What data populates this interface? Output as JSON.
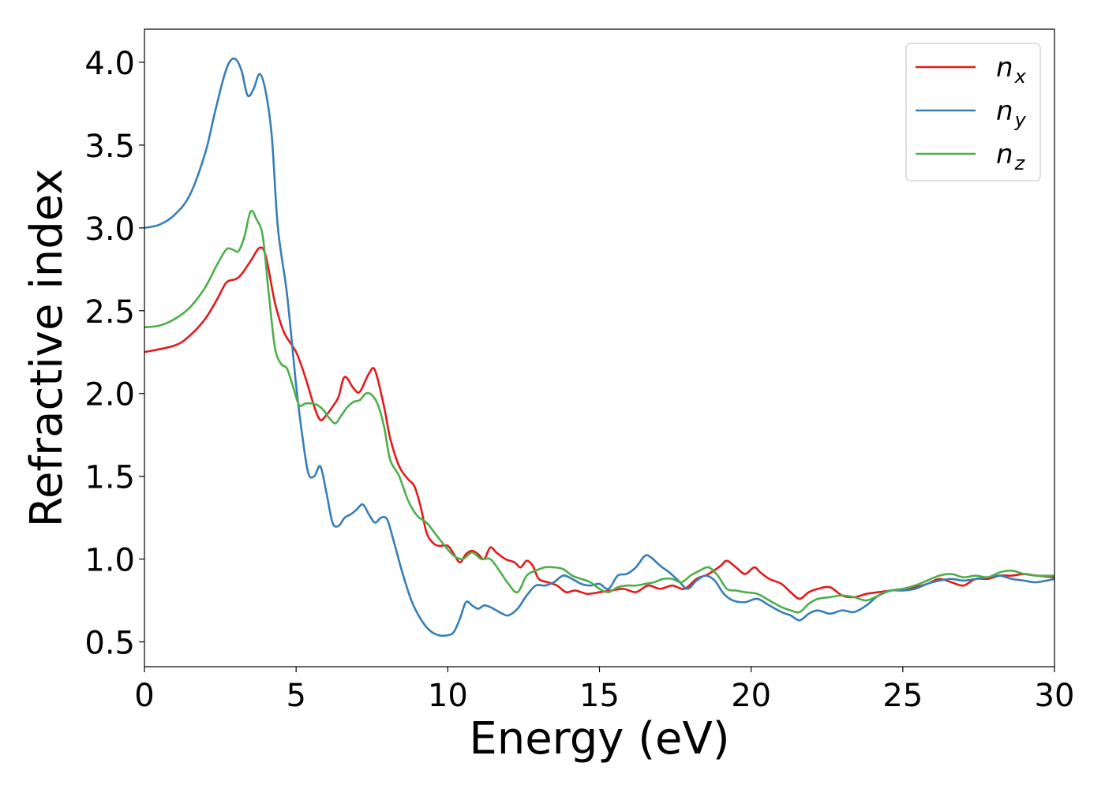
{
  "chart_data": {
    "type": "line",
    "xlabel": "Energy (eV)",
    "ylabel": "Refractive index",
    "xlim": [
      0,
      30
    ],
    "ylim": [
      0.35,
      4.2
    ],
    "xticks": [
      0,
      5,
      10,
      15,
      20,
      25,
      30
    ],
    "xtick_labels": [
      "0",
      "5",
      "10",
      "15",
      "20",
      "25",
      "30"
    ],
    "yticks": [
      0.5,
      1.0,
      1.5,
      2.0,
      2.5,
      3.0,
      3.5,
      4.0
    ],
    "ytick_labels": [
      "0.5",
      "1.0",
      "1.5",
      "2.0",
      "2.5",
      "3.0",
      "3.5",
      "4.0"
    ],
    "grid": false,
    "legend_position": "top-right",
    "series": [
      {
        "name": "n_x",
        "legend_base": "n",
        "legend_sub": "x",
        "color": "#e41a1c",
        "x": [
          0,
          1,
          1.5,
          2,
          2.4,
          2.7,
          3.0,
          3.2,
          3.5,
          3.8,
          4.0,
          4.3,
          4.6,
          5.0,
          5.3,
          5.6,
          5.8,
          6.0,
          6.2,
          6.4,
          6.6,
          6.9,
          7.1,
          7.4,
          7.6,
          7.9,
          8.1,
          8.4,
          8.7,
          8.9,
          9.1,
          9.3,
          9.5,
          9.7,
          10.0,
          10.2,
          10.4,
          10.6,
          10.8,
          11.0,
          11.2,
          11.4,
          11.6,
          11.9,
          12.2,
          12.4,
          12.6,
          12.8,
          13.0,
          13.3,
          13.6,
          13.9,
          14.2,
          14.6,
          15.0,
          15.4,
          15.8,
          16.2,
          16.6,
          17.0,
          17.4,
          17.8,
          18.2,
          18.6,
          19.0,
          19.2,
          19.5,
          19.8,
          20.1,
          20.3,
          20.6,
          21.0,
          21.3,
          21.6,
          21.9,
          22.2,
          22.6,
          23.0,
          23.4,
          23.8,
          24.2,
          24.6,
          25.0,
          25.4,
          25.8,
          26.2,
          26.6,
          27.0,
          27.4,
          27.8,
          28.2,
          28.6,
          29.0,
          29.4,
          30.0
        ],
        "values": [
          2.25,
          2.29,
          2.35,
          2.45,
          2.57,
          2.67,
          2.69,
          2.72,
          2.8,
          2.88,
          2.83,
          2.55,
          2.37,
          2.25,
          2.1,
          1.92,
          1.84,
          1.87,
          1.92,
          1.98,
          2.1,
          2.03,
          2.01,
          2.12,
          2.14,
          1.92,
          1.73,
          1.56,
          1.48,
          1.44,
          1.32,
          1.16,
          1.1,
          1.08,
          1.08,
          1.03,
          0.98,
          1.03,
          1.05,
          1.03,
          1.0,
          1.07,
          1.04,
          1.0,
          0.98,
          0.95,
          0.99,
          0.96,
          0.88,
          0.86,
          0.84,
          0.8,
          0.81,
          0.79,
          0.8,
          0.81,
          0.82,
          0.8,
          0.84,
          0.82,
          0.84,
          0.82,
          0.88,
          0.91,
          0.96,
          0.99,
          0.95,
          0.91,
          0.95,
          0.92,
          0.88,
          0.85,
          0.8,
          0.76,
          0.8,
          0.82,
          0.83,
          0.78,
          0.77,
          0.79,
          0.8,
          0.81,
          0.82,
          0.83,
          0.85,
          0.88,
          0.86,
          0.84,
          0.88,
          0.88,
          0.9,
          0.9,
          0.91,
          0.9,
          0.89
        ]
      },
      {
        "name": "n_y",
        "legend_base": "n",
        "legend_sub": "y",
        "color": "#377eb8",
        "x": [
          0,
          0.5,
          1,
          1.5,
          2,
          2.3,
          2.6,
          2.8,
          3.0,
          3.2,
          3.4,
          3.6,
          3.8,
          4.0,
          4.2,
          4.4,
          4.7,
          5.0,
          5.2,
          5.4,
          5.6,
          5.8,
          6.0,
          6.2,
          6.4,
          6.6,
          6.8,
          7.0,
          7.2,
          7.4,
          7.6,
          7.8,
          8.0,
          8.2,
          8.5,
          8.8,
          9.1,
          9.4,
          9.7,
          10.0,
          10.2,
          10.4,
          10.6,
          10.8,
          11.0,
          11.2,
          11.4,
          11.6,
          11.8,
          12.0,
          12.3,
          12.6,
          12.9,
          13.2,
          13.5,
          13.8,
          14.1,
          14.4,
          14.7,
          15.0,
          15.3,
          15.6,
          15.9,
          16.2,
          16.5,
          16.7,
          17.0,
          17.3,
          17.6,
          17.9,
          18.2,
          18.5,
          18.8,
          19.1,
          19.4,
          19.8,
          20.2,
          20.6,
          21.0,
          21.3,
          21.6,
          21.9,
          22.2,
          22.6,
          23.0,
          23.4,
          23.8,
          24.2,
          24.6,
          25.0,
          25.4,
          25.8,
          26.2,
          26.6,
          27.0,
          27.4,
          27.8,
          28.2,
          28.6,
          29.0,
          29.4,
          30.0
        ],
        "values": [
          3.0,
          3.02,
          3.08,
          3.2,
          3.45,
          3.68,
          3.9,
          4.0,
          4.02,
          3.95,
          3.8,
          3.84,
          3.93,
          3.82,
          3.55,
          3.0,
          2.6,
          2.05,
          1.75,
          1.52,
          1.5,
          1.56,
          1.4,
          1.22,
          1.2,
          1.25,
          1.27,
          1.3,
          1.33,
          1.27,
          1.22,
          1.25,
          1.24,
          1.12,
          0.92,
          0.75,
          0.64,
          0.57,
          0.54,
          0.54,
          0.56,
          0.64,
          0.74,
          0.72,
          0.7,
          0.72,
          0.71,
          0.69,
          0.67,
          0.66,
          0.7,
          0.78,
          0.84,
          0.84,
          0.86,
          0.9,
          0.88,
          0.85,
          0.84,
          0.85,
          0.82,
          0.9,
          0.91,
          0.95,
          1.02,
          1.01,
          0.96,
          0.92,
          0.87,
          0.82,
          0.87,
          0.9,
          0.87,
          0.79,
          0.75,
          0.74,
          0.76,
          0.72,
          0.68,
          0.66,
          0.63,
          0.67,
          0.69,
          0.67,
          0.69,
          0.68,
          0.72,
          0.78,
          0.81,
          0.81,
          0.82,
          0.85,
          0.87,
          0.88,
          0.87,
          0.88,
          0.89,
          0.9,
          0.88,
          0.87,
          0.86,
          0.88
        ]
      },
      {
        "name": "n_z",
        "legend_base": "n",
        "legend_sub": "z",
        "color": "#4daf4a",
        "x": [
          0,
          0.5,
          1,
          1.5,
          2,
          2.4,
          2.7,
          2.9,
          3.1,
          3.3,
          3.5,
          3.7,
          3.9,
          4.1,
          4.3,
          4.5,
          4.7,
          4.9,
          5.1,
          5.3,
          5.5,
          5.7,
          5.9,
          6.1,
          6.3,
          6.5,
          6.7,
          6.9,
          7.1,
          7.3,
          7.5,
          7.7,
          7.9,
          8.1,
          8.4,
          8.7,
          9.0,
          9.3,
          9.6,
          9.9,
          10.2,
          10.5,
          10.8,
          11.1,
          11.4,
          11.7,
          12.0,
          12.3,
          12.6,
          12.9,
          13.2,
          13.5,
          13.8,
          14.1,
          14.4,
          14.7,
          15.0,
          15.3,
          15.6,
          15.9,
          16.2,
          16.5,
          16.8,
          17.1,
          17.4,
          17.7,
          18.0,
          18.3,
          18.6,
          18.9,
          19.2,
          19.5,
          19.8,
          20.2,
          20.6,
          21.0,
          21.3,
          21.6,
          21.9,
          22.2,
          22.6,
          23.0,
          23.4,
          23.8,
          24.2,
          24.6,
          25.0,
          25.4,
          25.8,
          26.2,
          26.6,
          27.0,
          27.4,
          27.8,
          28.2,
          28.6,
          29.0,
          29.4,
          30.0
        ],
        "values": [
          2.4,
          2.41,
          2.45,
          2.52,
          2.64,
          2.78,
          2.87,
          2.87,
          2.86,
          2.95,
          3.1,
          3.05,
          2.95,
          2.6,
          2.28,
          2.18,
          2.15,
          2.04,
          1.93,
          1.94,
          1.94,
          1.93,
          1.9,
          1.85,
          1.82,
          1.87,
          1.92,
          1.95,
          1.96,
          2.0,
          1.99,
          1.93,
          1.8,
          1.6,
          1.5,
          1.35,
          1.26,
          1.22,
          1.15,
          1.08,
          1.02,
          1.0,
          1.04,
          1.0,
          1.0,
          0.93,
          0.85,
          0.8,
          0.9,
          0.93,
          0.95,
          0.95,
          0.94,
          0.9,
          0.88,
          0.86,
          0.82,
          0.8,
          0.83,
          0.84,
          0.84,
          0.85,
          0.86,
          0.88,
          0.88,
          0.86,
          0.9,
          0.93,
          0.95,
          0.9,
          0.82,
          0.81,
          0.8,
          0.79,
          0.75,
          0.71,
          0.69,
          0.68,
          0.73,
          0.76,
          0.77,
          0.78,
          0.77,
          0.75,
          0.78,
          0.81,
          0.82,
          0.84,
          0.87,
          0.9,
          0.91,
          0.89,
          0.9,
          0.89,
          0.92,
          0.93,
          0.91,
          0.9,
          0.9
        ]
      }
    ]
  }
}
